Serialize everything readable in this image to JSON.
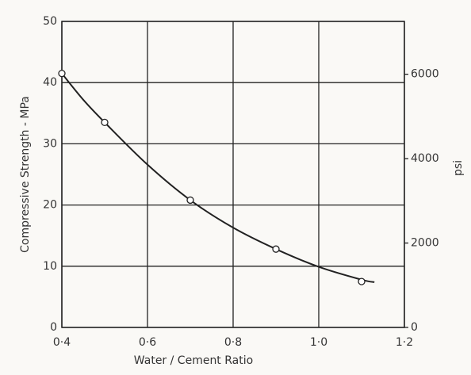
{
  "chart_data": {
    "type": "line",
    "xlabel": "Water / Cement Ratio",
    "ylabel": "Compressive Strength - MPa",
    "y2label": "psi",
    "xlim": [
      0.4,
      1.2
    ],
    "xticks": [
      {
        "value": 0.4,
        "label": "0·4"
      },
      {
        "value": 0.6,
        "label": "0·6"
      },
      {
        "value": 0.8,
        "label": "0·8"
      },
      {
        "value": 1.0,
        "label": "1·0"
      },
      {
        "value": 1.2,
        "label": "1·2"
      }
    ],
    "ylim": [
      0,
      50
    ],
    "yticks": [
      0,
      10,
      20,
      30,
      40,
      50
    ],
    "y2lim": [
      0,
      7252
    ],
    "y2ticks": [
      0,
      2000,
      4000,
      6000
    ],
    "grid": true,
    "series": [
      {
        "style": "curve",
        "color": "#222222",
        "x": [
          0.4,
          0.45,
          0.5,
          0.6,
          0.7,
          0.8,
          0.9,
          1.0,
          1.1,
          1.13
        ],
        "values": [
          41.5,
          37.2,
          33.5,
          26.6,
          20.8,
          16.3,
          12.8,
          9.9,
          7.8,
          7.4
        ]
      },
      {
        "style": "markers",
        "color": "#222222",
        "x": [
          0.4,
          0.5,
          0.7,
          0.9,
          1.1
        ],
        "values": [
          41.5,
          33.5,
          20.8,
          12.8,
          7.5
        ]
      }
    ]
  }
}
